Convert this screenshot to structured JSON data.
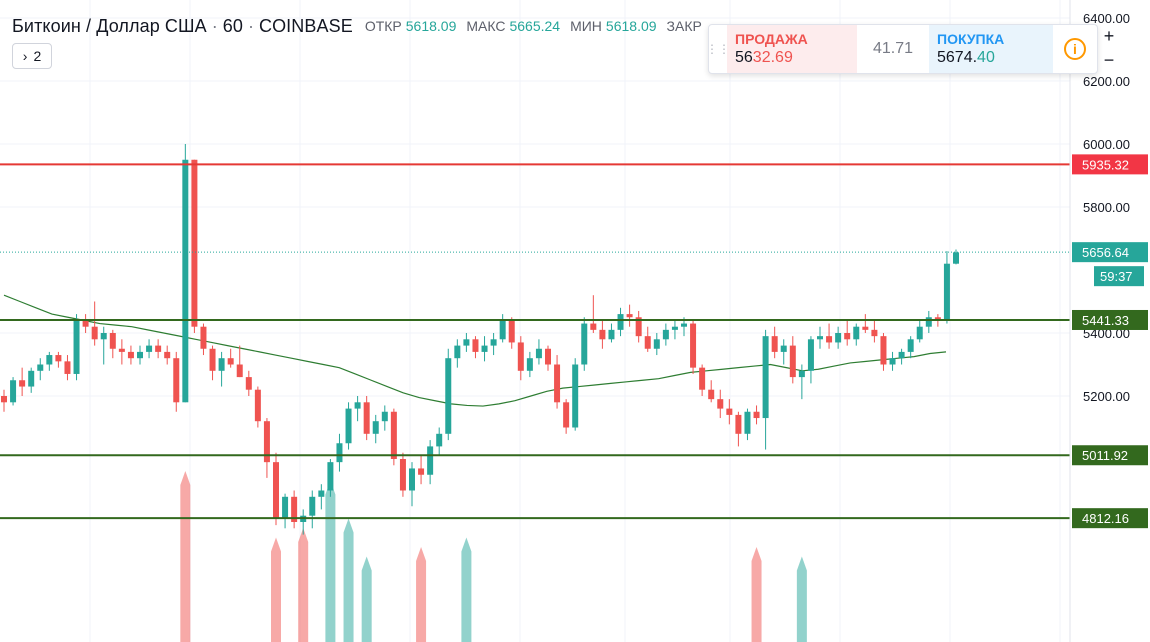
{
  "header": {
    "symbol": "Биткоин / Доллар США",
    "separator": "·",
    "interval": "60",
    "exchange": "COINBASE",
    "ohlc": [
      {
        "label": "ОТКР",
        "value": "5618.09"
      },
      {
        "label": "МАКС",
        "value": "5665.24"
      },
      {
        "label": "МИН",
        "value": "5618.09"
      },
      {
        "label": "ЗАКР",
        "value": ""
      }
    ]
  },
  "collapse_button": {
    "icon": "chevron-right",
    "count": "2"
  },
  "trade_panel": {
    "sell_label": "ПРОДАЖА",
    "sell_price_prefix": "56",
    "sell_price_highlight": "32.69",
    "spread": "41.71",
    "buy_label": "ПОКУПКА",
    "buy_price_prefix": "5674.",
    "buy_price_highlight": "40",
    "info_icon": "i"
  },
  "zoom": {
    "plus": "+",
    "minus": "−"
  },
  "colors": {
    "up": "#26a69a",
    "down": "#ef5350",
    "ma": "#2e7d32",
    "level": "#33691e",
    "resistance": "#e53935",
    "price_line": "#26a69a"
  },
  "chart_data": {
    "type": "candlestick",
    "ylim": [
      4700,
      6400
    ],
    "y_ticks": [
      "6400.00",
      "6200.00",
      "6000.00",
      "5800.00",
      "5400.00",
      "5200.00"
    ],
    "price_tags": [
      {
        "value": 5935.32,
        "label": "5935.32",
        "kind": "resistance"
      },
      {
        "value": 5656.64,
        "label": "5656.64",
        "kind": "current"
      },
      {
        "value": 5441.33,
        "label": "5441.33",
        "kind": "level"
      },
      {
        "value": 5011.92,
        "label": "5011.92",
        "kind": "level"
      },
      {
        "value": 4812.16,
        "label": "4812.16",
        "kind": "level"
      }
    ],
    "countdown": "59:37",
    "candles": [
      [
        5200,
        5220,
        5150,
        5180
      ],
      [
        5180,
        5260,
        5170,
        5250
      ],
      [
        5250,
        5290,
        5200,
        5230
      ],
      [
        5230,
        5290,
        5210,
        5280
      ],
      [
        5280,
        5320,
        5250,
        5300
      ],
      [
        5300,
        5340,
        5280,
        5330
      ],
      [
        5330,
        5340,
        5290,
        5310
      ],
      [
        5310,
        5330,
        5250,
        5270
      ],
      [
        5270,
        5460,
        5250,
        5440
      ],
      [
        5440,
        5460,
        5400,
        5420
      ],
      [
        5420,
        5500,
        5360,
        5380
      ],
      [
        5380,
        5420,
        5300,
        5400
      ],
      [
        5400,
        5410,
        5320,
        5350
      ],
      [
        5350,
        5380,
        5300,
        5340
      ],
      [
        5340,
        5360,
        5300,
        5320
      ],
      [
        5320,
        5360,
        5300,
        5340
      ],
      [
        5340,
        5380,
        5320,
        5360
      ],
      [
        5360,
        5380,
        5320,
        5340
      ],
      [
        5340,
        5360,
        5300,
        5320
      ],
      [
        5320,
        5340,
        5150,
        5180
      ],
      [
        5180,
        6000,
        5180,
        5950
      ],
      [
        5950,
        5950,
        5400,
        5420
      ],
      [
        5420,
        5430,
        5330,
        5350
      ],
      [
        5350,
        5360,
        5250,
        5280
      ],
      [
        5280,
        5340,
        5230,
        5320
      ],
      [
        5320,
        5350,
        5290,
        5300
      ],
      [
        5300,
        5360,
        5260,
        5260
      ],
      [
        5260,
        5280,
        5200,
        5220
      ],
      [
        5220,
        5230,
        5100,
        5120
      ],
      [
        5120,
        5130,
        4940,
        4990
      ],
      [
        4990,
        5020,
        4790,
        4810
      ],
      [
        4810,
        4890,
        4780,
        4880
      ],
      [
        4880,
        4900,
        4780,
        4800
      ],
      [
        4800,
        4840,
        4760,
        4820
      ],
      [
        4820,
        4900,
        4780,
        4880
      ],
      [
        4880,
        4920,
        4840,
        4900
      ],
      [
        4900,
        5000,
        4880,
        4990
      ],
      [
        4990,
        5080,
        4960,
        5050
      ],
      [
        5050,
        5180,
        5030,
        5160
      ],
      [
        5160,
        5200,
        5120,
        5180
      ],
      [
        5180,
        5200,
        5060,
        5080
      ],
      [
        5080,
        5140,
        5050,
        5120
      ],
      [
        5120,
        5170,
        5090,
        5150
      ],
      [
        5150,
        5160,
        4980,
        5000
      ],
      [
        5000,
        5020,
        4880,
        4900
      ],
      [
        4900,
        4990,
        4850,
        4970
      ],
      [
        4970,
        5010,
        4920,
        4950
      ],
      [
        4950,
        5060,
        4920,
        5040
      ],
      [
        5040,
        5100,
        5010,
        5080
      ],
      [
        5080,
        5350,
        5060,
        5320
      ],
      [
        5320,
        5380,
        5290,
        5360
      ],
      [
        5360,
        5400,
        5340,
        5380
      ],
      [
        5380,
        5390,
        5320,
        5340
      ],
      [
        5340,
        5390,
        5310,
        5360
      ],
      [
        5360,
        5400,
        5330,
        5380
      ],
      [
        5380,
        5460,
        5370,
        5440
      ],
      [
        5440,
        5450,
        5350,
        5370
      ],
      [
        5370,
        5390,
        5250,
        5280
      ],
      [
        5280,
        5340,
        5260,
        5320
      ],
      [
        5320,
        5380,
        5300,
        5350
      ],
      [
        5350,
        5360,
        5280,
        5300
      ],
      [
        5300,
        5330,
        5160,
        5180
      ],
      [
        5180,
        5190,
        5080,
        5100
      ],
      [
        5100,
        5320,
        5090,
        5300
      ],
      [
        5300,
        5450,
        5280,
        5430
      ],
      [
        5430,
        5520,
        5400,
        5410
      ],
      [
        5410,
        5440,
        5350,
        5380
      ],
      [
        5380,
        5430,
        5370,
        5410
      ],
      [
        5410,
        5480,
        5390,
        5460
      ],
      [
        5460,
        5490,
        5420,
        5450
      ],
      [
        5450,
        5470,
        5370,
        5390
      ],
      [
        5390,
        5420,
        5340,
        5350
      ],
      [
        5350,
        5400,
        5330,
        5380
      ],
      [
        5380,
        5430,
        5360,
        5410
      ],
      [
        5410,
        5440,
        5380,
        5420
      ],
      [
        5420,
        5450,
        5390,
        5430
      ],
      [
        5430,
        5440,
        5270,
        5290
      ],
      [
        5290,
        5300,
        5200,
        5220
      ],
      [
        5220,
        5250,
        5180,
        5190
      ],
      [
        5190,
        5220,
        5130,
        5160
      ],
      [
        5160,
        5190,
        5110,
        5140
      ],
      [
        5140,
        5150,
        5040,
        5080
      ],
      [
        5080,
        5160,
        5060,
        5150
      ],
      [
        5150,
        5170,
        5110,
        5130
      ],
      [
        5130,
        5410,
        5030,
        5390
      ],
      [
        5390,
        5420,
        5320,
        5340
      ],
      [
        5340,
        5380,
        5300,
        5360
      ],
      [
        5360,
        5390,
        5240,
        5260
      ],
      [
        5260,
        5300,
        5190,
        5280
      ],
      [
        5280,
        5390,
        5240,
        5380
      ],
      [
        5380,
        5420,
        5350,
        5390
      ],
      [
        5390,
        5430,
        5350,
        5370
      ],
      [
        5370,
        5420,
        5350,
        5400
      ],
      [
        5400,
        5440,
        5360,
        5380
      ],
      [
        5380,
        5430,
        5360,
        5420
      ],
      [
        5420,
        5460,
        5400,
        5410
      ],
      [
        5410,
        5440,
        5370,
        5390
      ],
      [
        5390,
        5400,
        5280,
        5300
      ],
      [
        5300,
        5340,
        5280,
        5320
      ],
      [
        5320,
        5350,
        5300,
        5340
      ],
      [
        5340,
        5390,
        5320,
        5380
      ],
      [
        5380,
        5440,
        5370,
        5420
      ],
      [
        5420,
        5470,
        5400,
        5450
      ],
      [
        5450,
        5460,
        5420,
        5440
      ],
      [
        5440,
        5660,
        5430,
        5620
      ],
      [
        5620,
        5665,
        5618,
        5656
      ]
    ],
    "ma": [
      5520,
      5500,
      5480,
      5460,
      5450,
      5440,
      5430,
      5425,
      5420,
      5410,
      5400,
      5390,
      5380,
      5370,
      5360,
      5350,
      5340,
      5330,
      5320,
      5310,
      5300,
      5290,
      5270,
      5250,
      5230,
      5210,
      5195,
      5185,
      5175,
      5170,
      5168,
      5175,
      5185,
      5200,
      5215,
      5225,
      5230,
      5235,
      5240,
      5245,
      5250,
      5255,
      5265,
      5275,
      5280,
      5285,
      5290,
      5295,
      5300,
      5290,
      5280,
      5285,
      5295,
      5305,
      5310,
      5315,
      5320,
      5325,
      5335,
      5340
    ],
    "volume_spikes": [
      {
        "i": 20,
        "h": 0.9,
        "c": "down"
      },
      {
        "i": 30,
        "h": 0.55,
        "c": "down"
      },
      {
        "i": 33,
        "h": 0.6,
        "c": "down"
      },
      {
        "i": 36,
        "h": 0.85,
        "c": "up"
      },
      {
        "i": 38,
        "h": 0.65,
        "c": "up"
      },
      {
        "i": 40,
        "h": 0.45,
        "c": "up"
      },
      {
        "i": 46,
        "h": 0.5,
        "c": "down"
      },
      {
        "i": 51,
        "h": 0.55,
        "c": "up"
      },
      {
        "i": 83,
        "h": 0.5,
        "c": "down"
      },
      {
        "i": 88,
        "h": 0.45,
        "c": "up"
      }
    ]
  }
}
